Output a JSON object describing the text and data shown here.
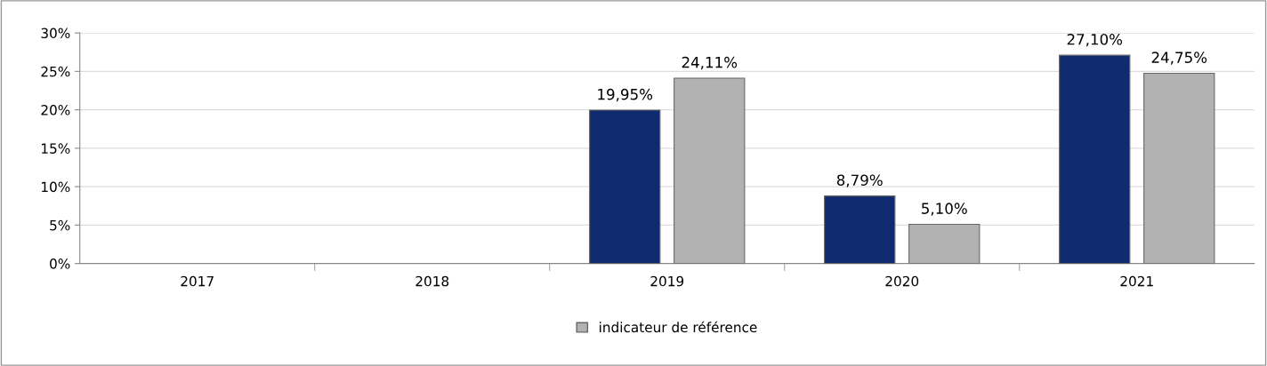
{
  "chart_data": {
    "type": "bar",
    "categories": [
      "2017",
      "2018",
      "2019",
      "2020",
      "2021"
    ],
    "series": [
      {
        "color": "#0f2a6e",
        "values": [
          null,
          null,
          19.95,
          8.79,
          27.1
        ],
        "value_labels": [
          null,
          null,
          "19,95%",
          "8,79%",
          "27,10%"
        ]
      },
      {
        "name": "indicateur de référence",
        "color": "#b2b2b2",
        "values": [
          null,
          null,
          24.11,
          5.1,
          24.75
        ],
        "value_labels": [
          null,
          null,
          "24,11%",
          "5,10%",
          "24,75%"
        ]
      }
    ],
    "ylim": [
      0,
      30
    ],
    "yticks": [
      {
        "value": 0,
        "label": "0%"
      },
      {
        "value": 5,
        "label": "5%"
      },
      {
        "value": 10,
        "label": "10%"
      },
      {
        "value": 15,
        "label": "15%"
      },
      {
        "value": 20,
        "label": "20%"
      },
      {
        "value": 25,
        "label": "25%"
      },
      {
        "value": 30,
        "label": "30%"
      }
    ],
    "grid": "y",
    "legend": "bottom"
  }
}
